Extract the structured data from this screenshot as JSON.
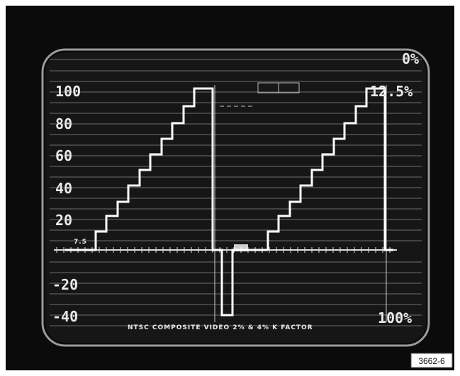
{
  "scale": {
    "left_labels": [
      "100",
      "80",
      "60",
      "40",
      "20",
      "-20",
      "-40"
    ],
    "ire_7_5": "7.5",
    "right_labels": {
      "top": "0%",
      "upper": "12.5%",
      "bottom": "100%"
    }
  },
  "caption": "NTSC COMPOSITE VIDEO 2% & 4% K FACTOR",
  "figure_number": "3662-6"
}
